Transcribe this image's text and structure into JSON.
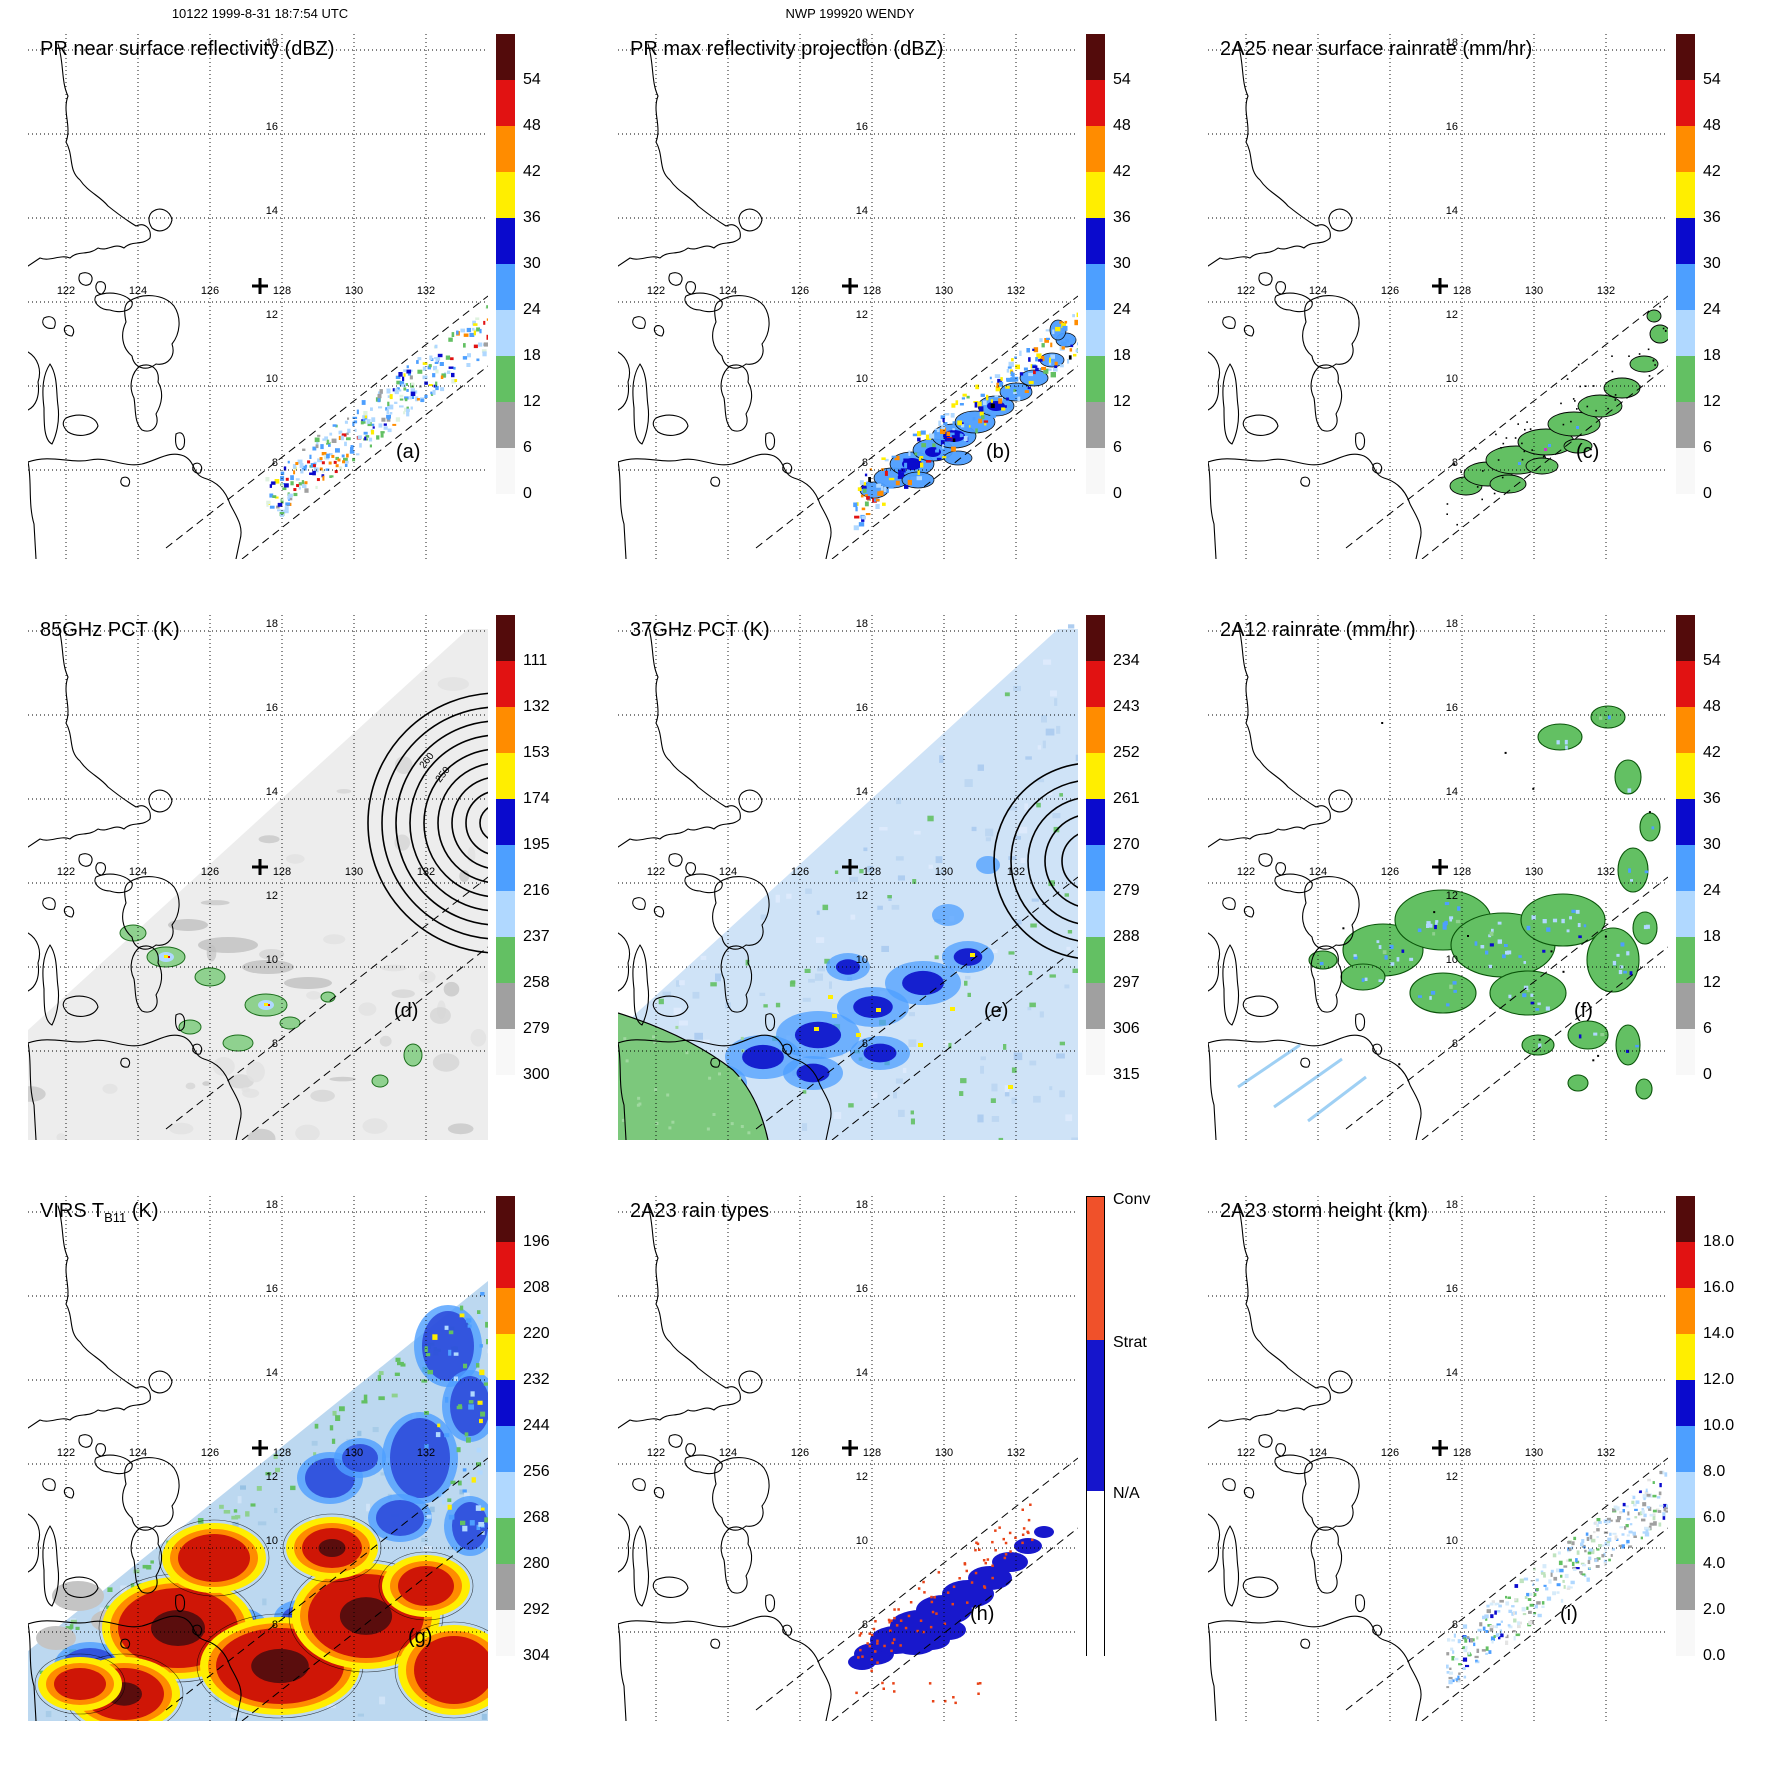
{
  "header": {
    "left": "10122 1999-8-31 18:7:54 UTC",
    "center": "NWP 199920 WENDY"
  },
  "map": {
    "lon_labels": [
      "122",
      "124",
      "126",
      "128",
      "130",
      "132"
    ],
    "lat_labels": [
      "18",
      "16",
      "14",
      "12",
      "10",
      "8"
    ],
    "center_marker": "+"
  },
  "colors": {
    "scale": [
      "#530b0b",
      "#e11212",
      "#ff8c00",
      "#ffee00",
      "#0a0acd",
      "#4d9fff",
      "#b0d8ff",
      "#63c063",
      "#a0a0a0",
      "#f8f8f8"
    ],
    "swath_gray": "#ededed",
    "swath_blue": "#cfe3f7",
    "virs_base": "#bcd8f0"
  },
  "panels": [
    {
      "letter": "(a)",
      "title": "PR near surface reflectivity (dBZ)",
      "cbar": "scale",
      "ticks": [
        "54",
        "48",
        "42",
        "36",
        "30",
        "24",
        "18",
        "12",
        "6",
        "0"
      ]
    },
    {
      "letter": "(b)",
      "title": "PR max reflectivity projection (dBZ)",
      "cbar": "scale",
      "ticks": [
        "54",
        "48",
        "42",
        "36",
        "30",
        "24",
        "18",
        "12",
        "6",
        "0"
      ]
    },
    {
      "letter": "(c)",
      "title": "2A25 near surface rainrate (mm/hr)",
      "cbar": "scale",
      "ticks": [
        "54",
        "48",
        "42",
        "36",
        "30",
        "24",
        "18",
        "12",
        "6",
        "0"
      ]
    },
    {
      "letter": "(d)",
      "title": "85GHz PCT (K)",
      "cbar": "scale",
      "ticks": [
        "111",
        "132",
        "153",
        "174",
        "195",
        "216",
        "237",
        "258",
        "279",
        "300"
      ],
      "contour_labels": [
        "250",
        "260"
      ]
    },
    {
      "letter": "(e)",
      "title": "37GHz PCT (K)",
      "cbar": "scale",
      "ticks": [
        "234",
        "243",
        "252",
        "261",
        "270",
        "279",
        "288",
        "297",
        "306",
        "315"
      ]
    },
    {
      "letter": "(f)",
      "title": "2A12 rainrate (mm/hr)",
      "cbar": "scale",
      "ticks": [
        "54",
        "48",
        "42",
        "36",
        "30",
        "24",
        "18",
        "12",
        "6",
        "0"
      ]
    },
    {
      "letter": "(g)",
      "title_pre": "VIRS T",
      "title_sub": "B11",
      "title_post": " (K)",
      "cbar": "scale",
      "ticks": [
        "196",
        "208",
        "220",
        "232",
        "244",
        "256",
        "268",
        "280",
        "292",
        "304"
      ]
    },
    {
      "letter": "(h)",
      "title": "2A23 rain types",
      "cbar": "raintypes",
      "raintypes": [
        {
          "label": "Conv",
          "color": "#f0512a",
          "frac": 0.31
        },
        {
          "label": "Strat",
          "color": "#1515cc",
          "frac": 0.33
        },
        {
          "label": "N/A",
          "color": "#ffffff",
          "frac": 0.36
        }
      ]
    },
    {
      "letter": "(i)",
      "title": "2A23 storm height (km)",
      "cbar": "scale",
      "ticks": [
        "18.0",
        "16.0",
        "14.0",
        "12.0",
        "10.0",
        "8.0",
        "6.0",
        "4.0",
        "2.0",
        "0.0"
      ]
    }
  ]
}
